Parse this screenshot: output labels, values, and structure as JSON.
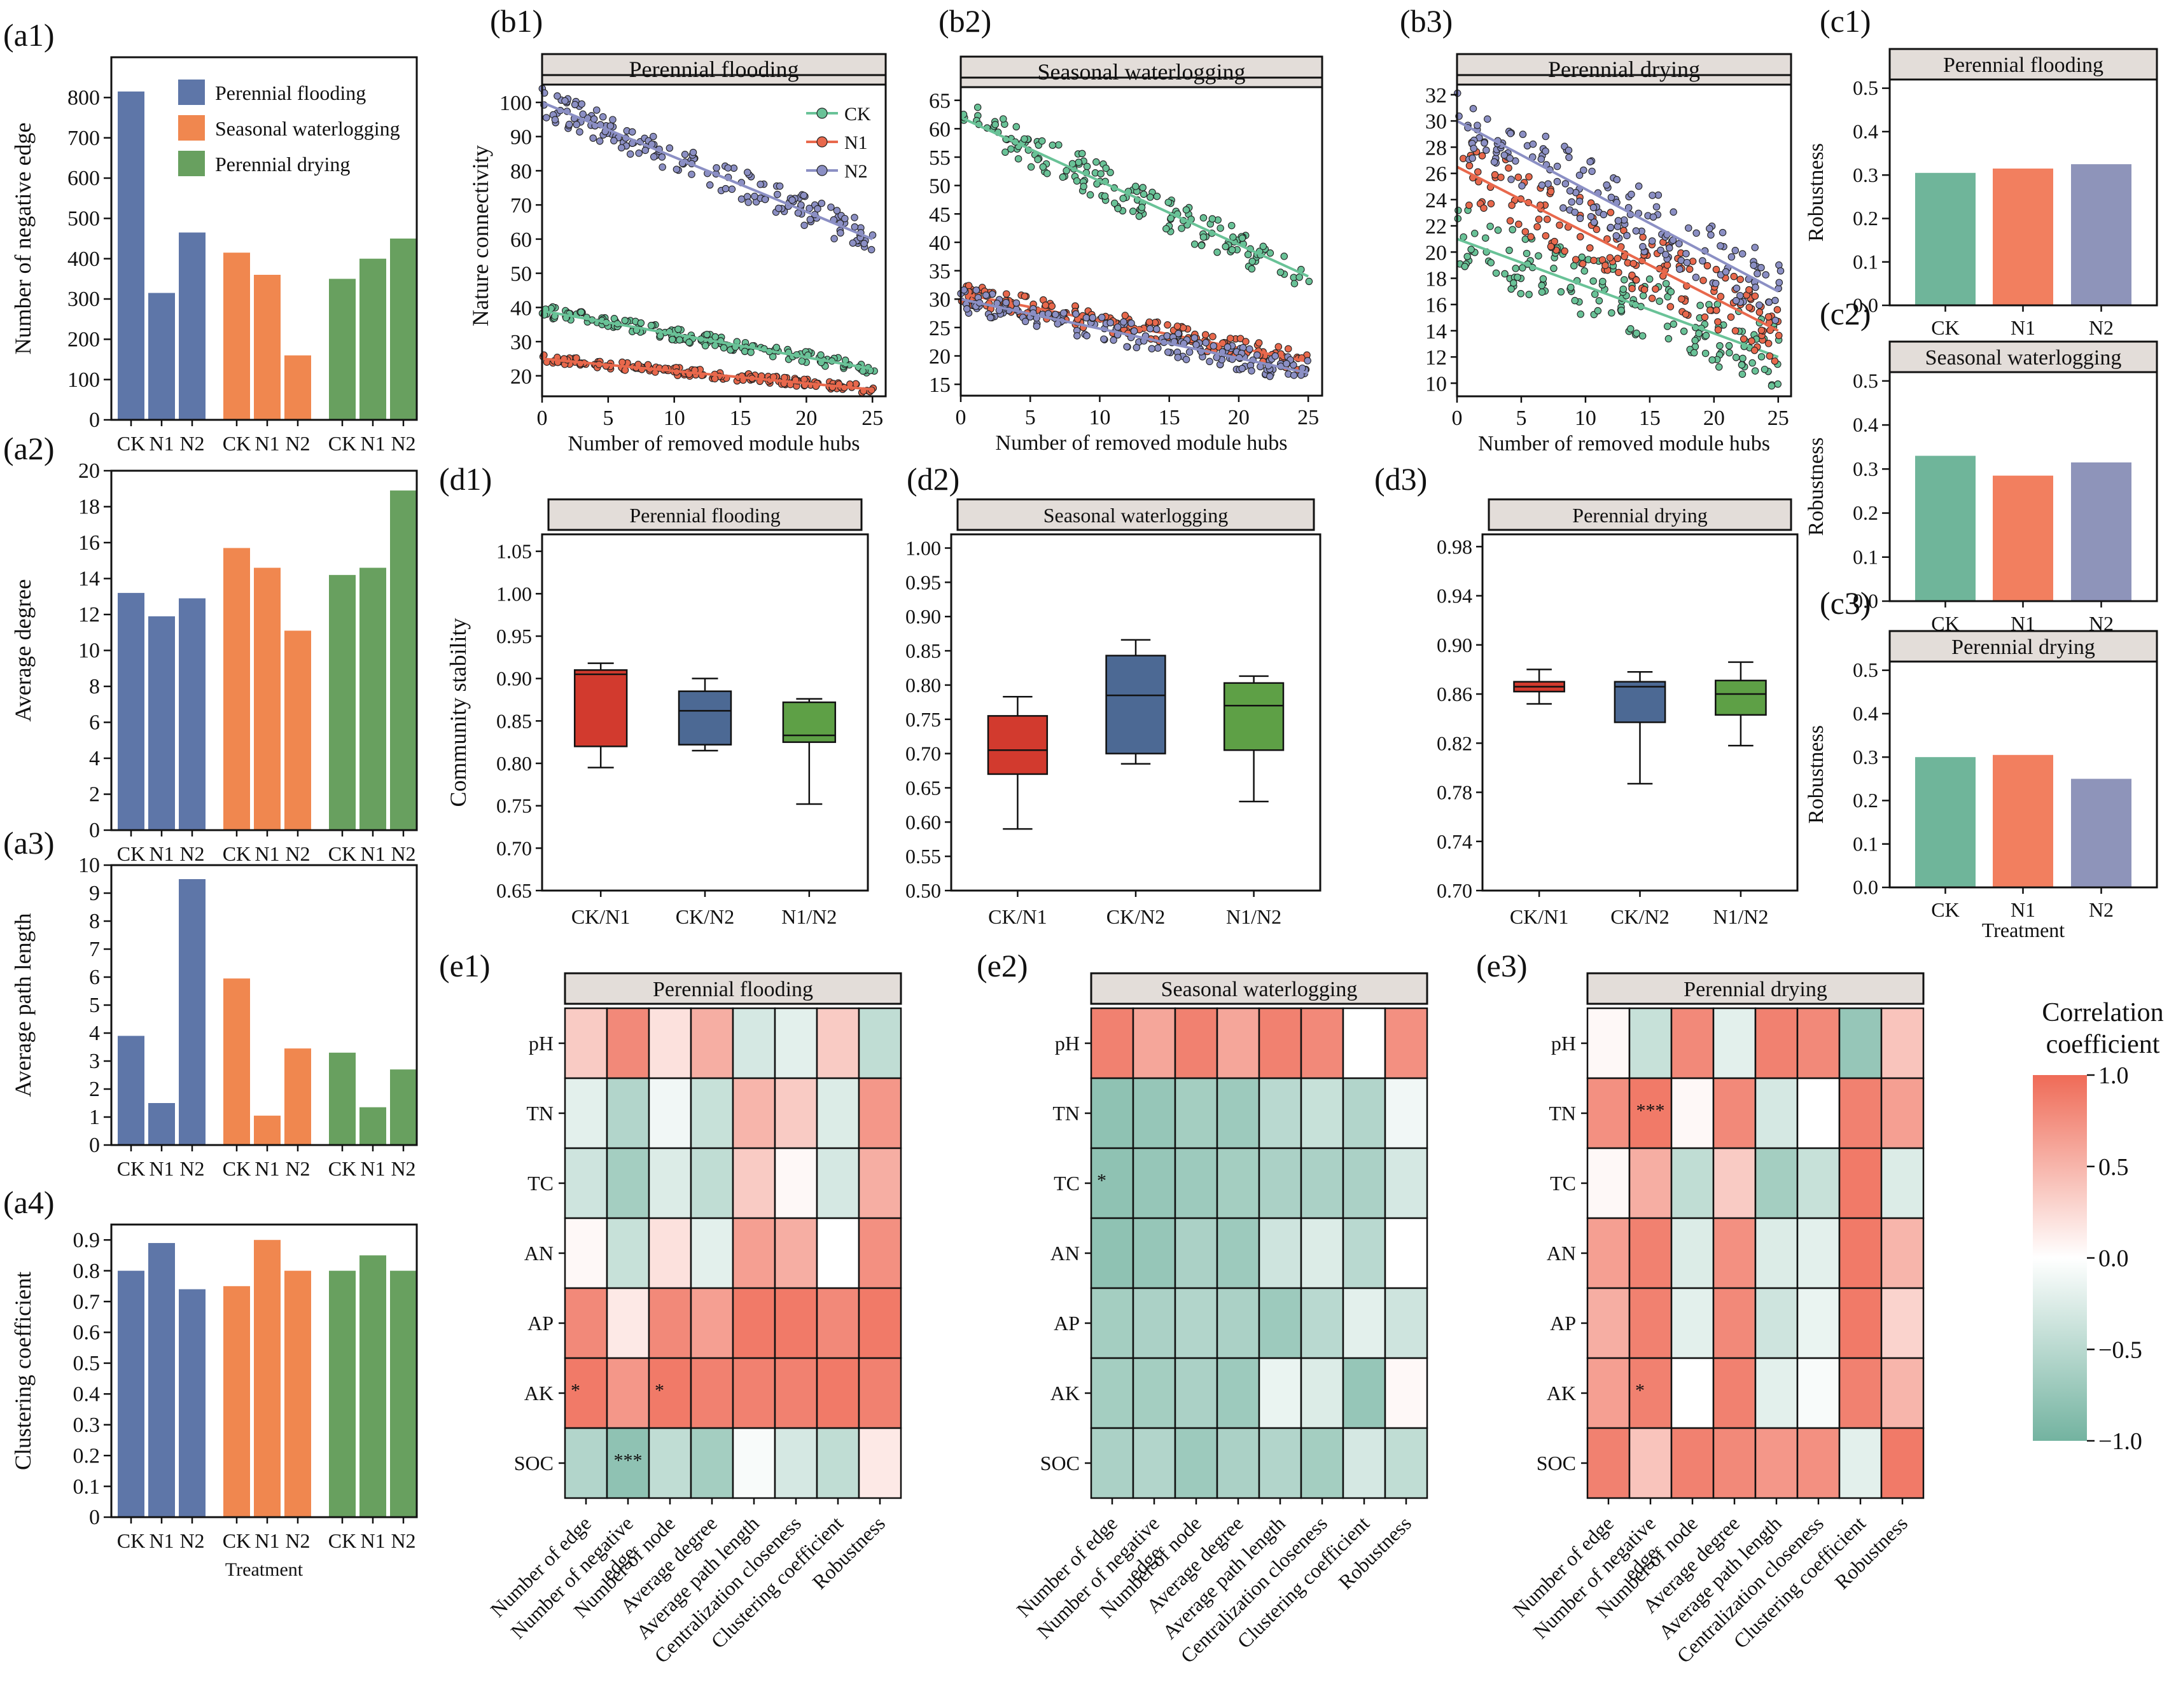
{
  "colors": {
    "blue": "#5e76a8",
    "orange": "#f0874f",
    "green": "#68a05f",
    "teal": "#6fb59a",
    "salmon": "#f27f5f",
    "lavender": "#8e94ba",
    "boxRed": "#d23a2e",
    "boxBlue": "#4c6994",
    "boxGreen": "#5ea046",
    "dotGreen": "#69c297",
    "dotRed": "#e8684c",
    "dotPurple": "#8b8fc4",
    "heatPos": "#ef6b57",
    "heatNeg": "#73b3a0"
  },
  "a_legend": [
    "Perennial flooding",
    "Seasonal waterlogging",
    "Perennial drying"
  ],
  "a_xlabel": "Treatment",
  "chart_data": [
    {
      "id": "a1",
      "label": "(a1)",
      "type": "bar",
      "groups": [
        "Perennial flooding",
        "Seasonal waterlogging",
        "Perennial drying"
      ],
      "categories": [
        "CK",
        "N1",
        "N2",
        "CK",
        "N1",
        "N2",
        "CK",
        "N1",
        "N2"
      ],
      "values": [
        815,
        315,
        465,
        415,
        360,
        160,
        350,
        400,
        450
      ],
      "ylabel": "Number of negative edge",
      "ylim": [
        0,
        900
      ],
      "yticks": [
        "0",
        "100",
        "200",
        "300",
        "400",
        "500",
        "600",
        "700",
        "800"
      ],
      "ytickvals": [
        0,
        100,
        200,
        300,
        400,
        500,
        600,
        700,
        800
      ]
    },
    {
      "id": "a2",
      "label": "(a2)",
      "type": "bar",
      "categories": [
        "CK",
        "N1",
        "N2",
        "CK",
        "N1",
        "N2",
        "CK",
        "N1",
        "N2"
      ],
      "values": [
        13.2,
        11.9,
        12.9,
        15.7,
        14.6,
        11.1,
        14.2,
        14.6,
        18.9
      ],
      "ylabel": "Average degree",
      "ylim": [
        0,
        20
      ],
      "yticks": [
        "0",
        "2",
        "4",
        "6",
        "8",
        "10",
        "12",
        "14",
        "16",
        "18",
        "20"
      ],
      "ytickvals": [
        0,
        2,
        4,
        6,
        8,
        10,
        12,
        14,
        16,
        18,
        20
      ]
    },
    {
      "id": "a3",
      "label": "(a3)",
      "type": "bar",
      "categories": [
        "CK",
        "N1",
        "N2",
        "CK",
        "N1",
        "N2",
        "CK",
        "N1",
        "N2"
      ],
      "values": [
        3.9,
        1.5,
        9.5,
        5.95,
        1.05,
        3.45,
        3.3,
        1.35,
        2.7
      ],
      "ylabel": "Average path length",
      "ylim": [
        0,
        10
      ],
      "yticks": [
        "0",
        "1",
        "2",
        "3",
        "4",
        "5",
        "6",
        "7",
        "8",
        "9",
        "10"
      ],
      "ytickvals": [
        0,
        1,
        2,
        3,
        4,
        5,
        6,
        7,
        8,
        9,
        10
      ]
    },
    {
      "id": "a4",
      "label": "(a4)",
      "type": "bar",
      "categories": [
        "CK",
        "N1",
        "N2",
        "CK",
        "N1",
        "N2",
        "CK",
        "N1",
        "N2"
      ],
      "values": [
        0.8,
        0.89,
        0.74,
        0.75,
        0.9,
        0.8,
        0.8,
        0.85,
        0.8
      ],
      "ylabel": "Clustering coefficient",
      "ylim": [
        0,
        0.95
      ],
      "yticks": [
        "0",
        "0.1",
        "0.2",
        "0.3",
        "0.4",
        "0.5",
        "0.6",
        "0.7",
        "0.8",
        "0.9"
      ],
      "ytickvals": [
        0,
        0.1,
        0.2,
        0.3,
        0.4,
        0.5,
        0.6,
        0.7,
        0.8,
        0.9
      ]
    },
    {
      "id": "b1",
      "label": "(b1)",
      "type": "scatter",
      "title": "Perennial flooding",
      "xlabel": "Number of removed module hubs",
      "ylabel": "Nature connectivity",
      "xlim": [
        0,
        26
      ],
      "ylim": [
        14,
        108
      ],
      "xticks": [
        0,
        5,
        10,
        15,
        20,
        25
      ],
      "yticks": [
        20,
        30,
        40,
        50,
        60,
        70,
        80,
        90,
        100
      ],
      "legend": [
        "CK",
        "N1",
        "N2"
      ],
      "series": [
        {
          "name": "CK",
          "start": 39,
          "end": 22,
          "spread": 1.8
        },
        {
          "name": "N1",
          "start": 25,
          "end": 16,
          "spread": 1.2
        },
        {
          "name": "N2",
          "start": 100,
          "end": 60,
          "spread": 4.5
        }
      ]
    },
    {
      "id": "b2",
      "label": "(b2)",
      "type": "scatter",
      "title": "Seasonal waterlogging",
      "xlabel": "Number of removed module hubs",
      "xlim": [
        0,
        26
      ],
      "ylim": [
        13,
        69
      ],
      "xticks": [
        0,
        5,
        10,
        15,
        20,
        25
      ],
      "yticks": [
        15,
        20,
        25,
        30,
        35,
        40,
        45,
        50,
        55,
        60,
        65
      ],
      "series": [
        {
          "name": "CK",
          "start": 62,
          "end": 34,
          "spread": 3.5
        },
        {
          "name": "N1",
          "start": 31,
          "end": 19,
          "spread": 1.8
        },
        {
          "name": "N2",
          "start": 30,
          "end": 17,
          "spread": 2.2
        }
      ]
    },
    {
      "id": "b3",
      "label": "(b3)",
      "type": "scatter",
      "title": "Perennial drying",
      "xlabel": "Number of removed module hubs",
      "xlim": [
        0,
        26
      ],
      "ylim": [
        9,
        33.5
      ],
      "xticks": [
        0,
        5,
        10,
        15,
        20,
        25
      ],
      "yticks": [
        10,
        12,
        14,
        16,
        18,
        20,
        22,
        24,
        26,
        28,
        30,
        32
      ],
      "series": [
        {
          "name": "CK",
          "start": 21,
          "end": 12,
          "spread": 2.5
        },
        {
          "name": "N1",
          "start": 26.5,
          "end": 14,
          "spread": 2.5
        },
        {
          "name": "N2",
          "start": 30,
          "end": 17,
          "spread": 2.5
        }
      ]
    },
    {
      "id": "c1",
      "label": "(c1)",
      "type": "bar",
      "title": "Perennial flooding",
      "categories": [
        "CK",
        "N1",
        "N2"
      ],
      "values": [
        0.305,
        0.315,
        0.325
      ],
      "ylabel": "Robustness",
      "ylim": [
        0,
        0.52
      ],
      "yticks": [
        "0.0",
        "0.1",
        "0.2",
        "0.3",
        "0.4",
        "0.5"
      ],
      "ytickvals": [
        0,
        0.1,
        0.2,
        0.3,
        0.4,
        0.5
      ]
    },
    {
      "id": "c2",
      "label": "(c2)",
      "type": "bar",
      "title": "Seasonal waterlogging",
      "categories": [
        "CK",
        "N1",
        "N2"
      ],
      "values": [
        0.33,
        0.285,
        0.315
      ],
      "ylabel": "Robustness",
      "ylim": [
        0,
        0.52
      ],
      "yticks": [
        "0.0",
        "0.1",
        "0.2",
        "0.3",
        "0.4",
        "0.5"
      ],
      "ytickvals": [
        0,
        0.1,
        0.2,
        0.3,
        0.4,
        0.5
      ]
    },
    {
      "id": "c3",
      "label": "(c3)",
      "type": "bar",
      "title": "Perennial drying",
      "categories": [
        "CK",
        "N1",
        "N2"
      ],
      "values": [
        0.3,
        0.305,
        0.25
      ],
      "ylabel": "Robustness",
      "xlabel": "Treatment",
      "ylim": [
        0,
        0.52
      ],
      "yticks": [
        "0.0",
        "0.1",
        "0.2",
        "0.3",
        "0.4",
        "0.5"
      ],
      "ytickvals": [
        0,
        0.1,
        0.2,
        0.3,
        0.4,
        0.5
      ]
    },
    {
      "id": "d1",
      "label": "(d1)",
      "type": "box",
      "title": "Perennial flooding",
      "ylabel": "Community stability",
      "categories": [
        "CK/N1",
        "CK/N2",
        "N1/N2"
      ],
      "ylim": [
        0.65,
        1.07
      ],
      "yticks": [
        "0.65",
        "0.70",
        "0.75",
        "0.80",
        "0.85",
        "0.90",
        "0.95",
        "1.00",
        "1.05"
      ],
      "ytickvals": [
        0.65,
        0.7,
        0.75,
        0.8,
        0.85,
        0.9,
        0.95,
        1.0,
        1.05
      ],
      "boxes": [
        {
          "min": 0.795,
          "q1": 0.82,
          "med": 0.905,
          "q3": 0.91,
          "max": 0.918
        },
        {
          "min": 0.815,
          "q1": 0.822,
          "med": 0.862,
          "q3": 0.885,
          "max": 0.9
        },
        {
          "min": 0.752,
          "q1": 0.825,
          "med": 0.833,
          "q3": 0.872,
          "max": 0.876
        }
      ]
    },
    {
      "id": "d2",
      "label": "(d2)",
      "type": "box",
      "title": "Seasonal waterlogging",
      "categories": [
        "CK/N1",
        "CK/N2",
        "N1/N2"
      ],
      "ylim": [
        0.5,
        1.02
      ],
      "yticks": [
        "0.50",
        "0.55",
        "0.60",
        "0.65",
        "0.70",
        "0.75",
        "0.80",
        "0.85",
        "0.90",
        "0.95",
        "1.00"
      ],
      "ytickvals": [
        0.5,
        0.55,
        0.6,
        0.65,
        0.7,
        0.75,
        0.8,
        0.85,
        0.9,
        0.95,
        1.0
      ],
      "boxes": [
        {
          "min": 0.59,
          "q1": 0.67,
          "med": 0.705,
          "q3": 0.755,
          "max": 0.783
        },
        {
          "min": 0.685,
          "q1": 0.7,
          "med": 0.785,
          "q3": 0.843,
          "max": 0.866
        },
        {
          "min": 0.63,
          "q1": 0.705,
          "med": 0.77,
          "q3": 0.803,
          "max": 0.813
        }
      ]
    },
    {
      "id": "d3",
      "label": "(d3)",
      "type": "box",
      "title": "Perennial drying",
      "categories": [
        "CK/N1",
        "CK/N2",
        "N1/N2"
      ],
      "ylim": [
        0.7,
        0.99
      ],
      "yticks": [
        "0.70",
        "0.74",
        "0.78",
        "0.82",
        "0.86",
        "0.90",
        "0.94",
        "0.98"
      ],
      "ytickvals": [
        0.7,
        0.74,
        0.78,
        0.82,
        0.86,
        0.9,
        0.94,
        0.98
      ],
      "boxes": [
        {
          "min": 0.852,
          "q1": 0.862,
          "med": 0.866,
          "q3": 0.87,
          "max": 0.88
        },
        {
          "min": 0.787,
          "q1": 0.837,
          "med": 0.866,
          "q3": 0.87,
          "max": 0.878
        },
        {
          "min": 0.818,
          "q1": 0.843,
          "med": 0.86,
          "q3": 0.871,
          "max": 0.886
        }
      ]
    },
    {
      "id": "e1",
      "label": "(e1)",
      "type": "heatmap",
      "title": "Perennial flooding",
      "rows": [
        "pH",
        "TN",
        "TC",
        "AN",
        "AP",
        "AK",
        "SOC"
      ],
      "cols": [
        "Number of edge",
        "Number of negative\nedge",
        "Number of node",
        "Average degree",
        "Average path length",
        "Centralization closeness",
        "Clustering coefficient",
        "Robustness"
      ],
      "values": [
        [
          0.35,
          0.8,
          0.2,
          0.55,
          -0.3,
          -0.2,
          0.35,
          -0.45
        ],
        [
          -0.2,
          -0.55,
          -0.1,
          -0.4,
          0.5,
          0.35,
          -0.25,
          0.7
        ],
        [
          -0.35,
          -0.65,
          -0.25,
          -0.45,
          0.35,
          0.05,
          -0.3,
          0.55
        ],
        [
          0.05,
          -0.4,
          0.2,
          -0.2,
          0.65,
          0.55,
          0.0,
          0.75
        ],
        [
          0.8,
          0.15,
          0.8,
          0.65,
          0.9,
          0.9,
          0.8,
          0.9
        ],
        [
          0.9,
          0.7,
          0.9,
          0.85,
          0.85,
          0.85,
          0.9,
          0.85
        ],
        [
          -0.55,
          -0.8,
          -0.45,
          -0.65,
          -0.05,
          -0.3,
          -0.45,
          0.15
        ]
      ],
      "stars": [
        [
          5,
          0,
          "*"
        ],
        [
          5,
          2,
          "*"
        ],
        [
          6,
          1,
          "***"
        ]
      ]
    },
    {
      "id": "e2",
      "label": "(e2)",
      "type": "heatmap",
      "title": "Seasonal waterlogging",
      "rows": [
        "pH",
        "TN",
        "TC",
        "AN",
        "AP",
        "AK",
        "SOC"
      ],
      "cols": [
        "Number of edge",
        "Number of negative\nedge",
        "Number of node",
        "Average degree",
        "Average path length",
        "Centralization closeness",
        "Clustering coefficient",
        "Robustness"
      ],
      "values": [
        [
          0.85,
          0.6,
          0.85,
          0.6,
          0.85,
          0.8,
          0.0,
          0.75
        ],
        [
          -0.8,
          -0.75,
          -0.65,
          -0.7,
          -0.5,
          -0.4,
          -0.55,
          -0.1
        ],
        [
          -0.8,
          -0.75,
          -0.7,
          -0.65,
          -0.6,
          -0.6,
          -0.6,
          -0.3
        ],
        [
          -0.8,
          -0.75,
          -0.6,
          -0.7,
          -0.35,
          -0.25,
          -0.5,
          0.0
        ],
        [
          -0.65,
          -0.6,
          -0.55,
          -0.6,
          -0.7,
          -0.5,
          -0.2,
          -0.35
        ],
        [
          -0.65,
          -0.65,
          -0.6,
          -0.7,
          -0.15,
          -0.25,
          -0.75,
          0.05
        ],
        [
          -0.6,
          -0.55,
          -0.7,
          -0.6,
          -0.55,
          -0.65,
          -0.3,
          -0.45
        ]
      ],
      "stars": [
        [
          2,
          0,
          "*"
        ]
      ]
    },
    {
      "id": "e3",
      "label": "(e3)",
      "type": "heatmap",
      "title": "Perennial drying",
      "rows": [
        "pH",
        "TN",
        "TC",
        "AN",
        "AP",
        "AK",
        "SOC"
      ],
      "cols": [
        "Number of edge",
        "Number of negative\nedge",
        "Number of node",
        "Average degree",
        "Average path length",
        "Centralization closeness",
        "Clustering coefficient",
        "Robustness"
      ],
      "values": [
        [
          0.05,
          -0.4,
          0.8,
          -0.2,
          0.85,
          0.8,
          -0.75,
          0.4
        ],
        [
          0.75,
          0.9,
          0.05,
          0.8,
          -0.3,
          0.0,
          0.85,
          0.65
        ],
        [
          0.05,
          0.55,
          -0.45,
          0.35,
          -0.65,
          -0.4,
          0.9,
          -0.25
        ],
        [
          0.65,
          0.85,
          -0.25,
          0.75,
          -0.25,
          -0.2,
          0.9,
          0.5
        ],
        [
          0.55,
          0.85,
          -0.2,
          0.8,
          -0.35,
          -0.15,
          0.9,
          0.3
        ],
        [
          0.65,
          0.85,
          0.0,
          0.85,
          -0.2,
          -0.05,
          0.85,
          0.5
        ],
        [
          0.85,
          0.4,
          0.85,
          0.8,
          0.7,
          0.75,
          -0.2,
          0.9
        ]
      ],
      "stars": [
        [
          1,
          1,
          "***"
        ],
        [
          5,
          1,
          "*"
        ]
      ]
    }
  ],
  "colorbar": {
    "title_line1": "Correlation",
    "title_line2": "coefficient",
    "ticks": [
      "1.0",
      "0.5",
      "0.0",
      "−0.5",
      "−1.0"
    ],
    "tickvals": [
      1,
      0.5,
      0,
      -0.5,
      -1
    ]
  }
}
